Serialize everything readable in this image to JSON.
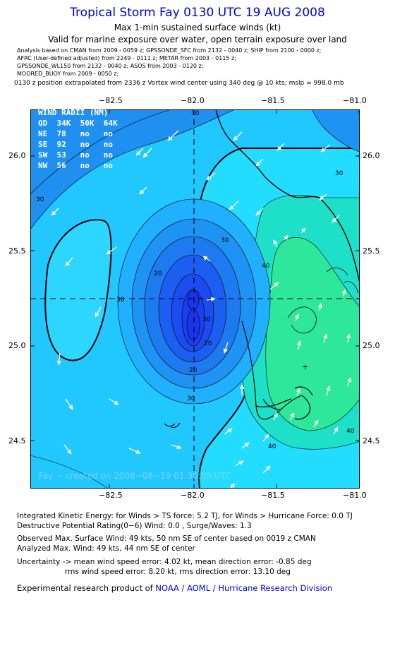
{
  "header": {
    "title": "Tropical Storm Fay 0130 UTC 19 AUG 2008",
    "subtitle": "Max 1-min sustained surface winds (kt)",
    "validity": "Valid for marine exposure over water, open terrain exposure over land"
  },
  "analysis_lines": [
    "Analysis based on  CMAN from 2009 - 0059 z;  GPSSONDE_SFC from 2132 - 0040 z;  SHIP from 2100 - 0000 z;",
    "AFRC (User-defined adjusted) from 2249 - 0111 z;  METAR from 2003 - 0115 z;",
    "GPSSONDE_WL150 from 2132 - 0040 z;  ASOS from 2003 - 0120 z;",
    "MOORED_BUOY from 2009 - 0050 z;"
  ],
  "position_note": "0130 z position extrapolated from 2336 z Vortex wind center using 340 deg @ 10 kts; mslp = 998.0 mb",
  "axes": {
    "lon_ticks": [
      "−82.5",
      "−82.0",
      "−81.5",
      "−81.0"
    ],
    "lat_ticks": [
      "26.0",
      "25.5",
      "25.0",
      "24.5"
    ]
  },
  "wind_radii": {
    "header": "WIND RADII (NM)",
    "columns": "QD  34K  50K  64K",
    "rows": [
      "NE  78   no   no",
      "SE  92   no   no",
      "SW  53   no   no",
      "NW  56   no   no"
    ]
  },
  "contour_labels": [
    "30",
    "30",
    "30",
    "30",
    "30",
    "30",
    "30",
    "20",
    "20",
    "20",
    "40",
    "40",
    "40"
  ],
  "map_credit": "Fay − created on 2008−08−19 01:30:05 UTC",
  "footer": {
    "ike": "Integrated Kinetic Energy:  for Winds > TS force: 5.2 TJ,  for Winds > Hurricane Force: 0.0 TJ",
    "rating": "Destructive Potential Rating(0−6)   Wind: 0.0 , Surge/Waves: 1.3",
    "observed": "Observed Max. Surface Wind: 49 kts, 50 nm SE of center based on 0019 z CMAN",
    "analyzed": "Analyzed Max. Wind: 49 kts, 44 nm SE of center",
    "uncertainty1": "Uncertainty -> mean wind speed error: 4.02 kt,    mean direction error:  -0.85 deg",
    "uncertainty2": "rms wind speed error: 8.20 kt,    rms direction error: 13.10 deg",
    "research_prefix": "Experimental research product of ",
    "research_org": "NOAA / AOML / Hurricane Research Division"
  },
  "colors": {
    "title": "#0000dd",
    "bg_outer": "#1f8ff0",
    "band_30": "#21c8ff",
    "band_40": "#1ee0c8",
    "max_zone": "#2de89a",
    "core": "#1b3ef0"
  }
}
